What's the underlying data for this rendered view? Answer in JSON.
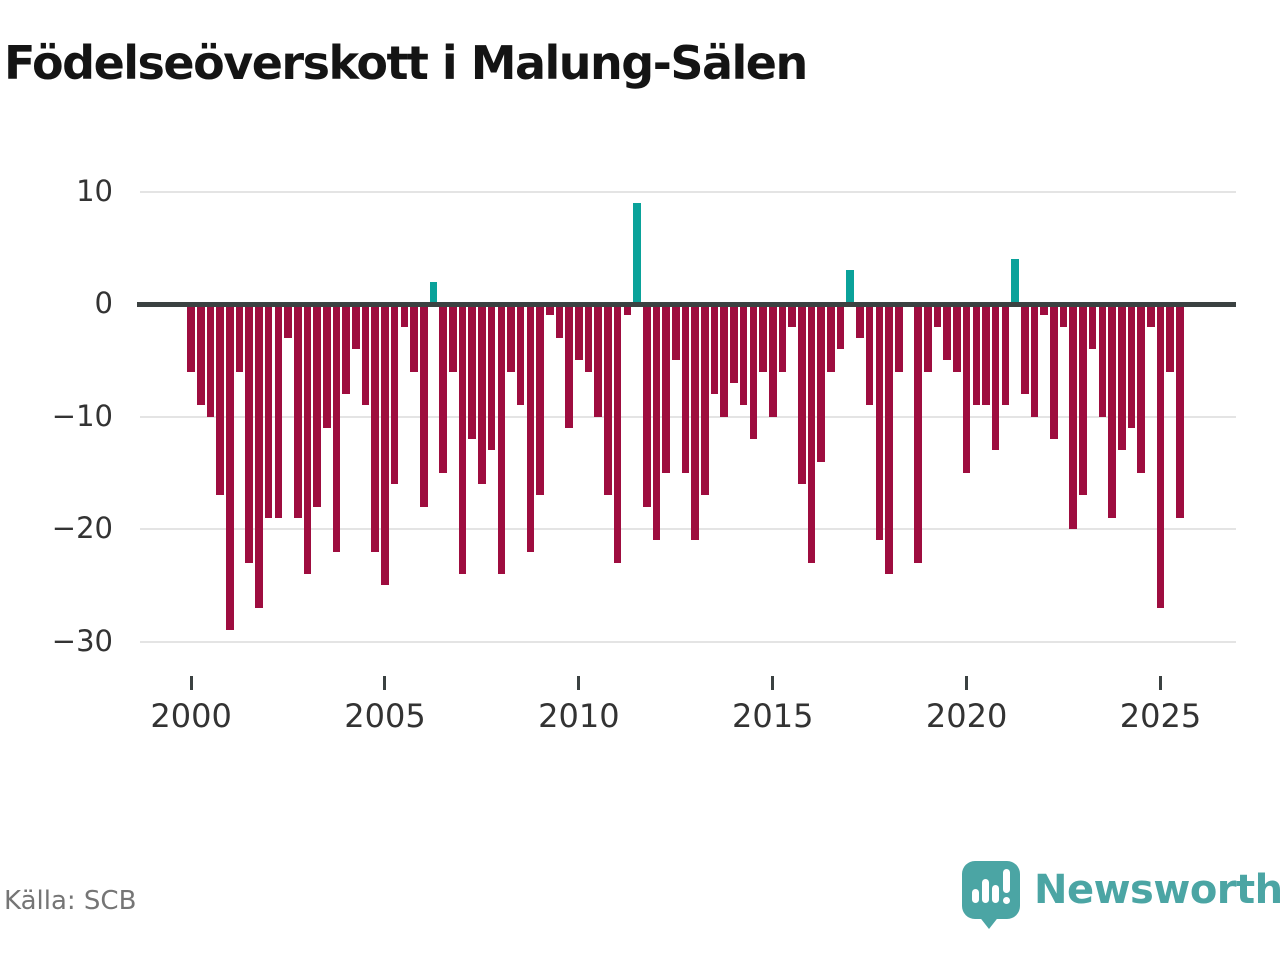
{
  "title": "Födelseöverskott i Malung-Sälen",
  "source": "Källa: SCB",
  "logo": {
    "text": "Newsworthy",
    "icon": "bar-chart-exclamation-speech-bubble"
  },
  "colors": {
    "negative_bar": "#9e0d3f",
    "positive_bar": "#0aa29a",
    "zero_line": "#3b4141",
    "gridline": "#e4e4e4",
    "axis_text": "#333333",
    "title_text": "#141414",
    "source_text": "#757575",
    "logo_teal": "#4ba5a4"
  },
  "chart_data": {
    "type": "bar",
    "title": "Födelseöverskott i Malung-Sälen",
    "xlabel": "",
    "ylabel": "",
    "ylim": [
      -30,
      10
    ],
    "yticks": [
      10,
      0,
      -10,
      -20,
      -30
    ],
    "ytick_labels": [
      "10",
      "0",
      "−10",
      "−20",
      "−30"
    ],
    "grid": "horizontal",
    "legend": "none",
    "period": "quarterly",
    "start": "2000 Q1",
    "end": "2025 Q3",
    "xticks": [
      {
        "label": "2000",
        "bar_index": 0
      },
      {
        "label": "2005",
        "bar_index": 20
      },
      {
        "label": "2010",
        "bar_index": 40
      },
      {
        "label": "2015",
        "bar_index": 60
      },
      {
        "label": "2020",
        "bar_index": 80
      },
      {
        "label": "2025",
        "bar_index": 100
      }
    ],
    "values": [
      -6,
      -9,
      -10,
      -17,
      -29,
      -6,
      -23,
      -27,
      -19,
      -19,
      -3,
      -19,
      -24,
      -18,
      -11,
      -22,
      -8,
      -4,
      -9,
      -22,
      -25,
      -16,
      -2,
      -6,
      -18,
      2,
      -15,
      -6,
      -24,
      -12,
      -16,
      -13,
      -24,
      -6,
      -9,
      -22,
      -17,
      -1,
      -3,
      -11,
      -5,
      -6,
      -10,
      -17,
      -23,
      -1,
      9,
      -18,
      -21,
      -15,
      -5,
      -15,
      -21,
      -17,
      -8,
      -10,
      -7,
      -9,
      -12,
      -6,
      -10,
      -6,
      -2,
      -16,
      -23,
      -14,
      -6,
      -4,
      3,
      -3,
      -9,
      -21,
      -24,
      -6,
      0,
      -23,
      -6,
      -2,
      -5,
      -6,
      -15,
      -9,
      -9,
      -13,
      -9,
      4,
      -8,
      -10,
      -1,
      -12,
      -2,
      -20,
      -17,
      -4,
      -10,
      -19,
      -13,
      -11,
      -15,
      -2,
      -27,
      -6,
      -19
    ],
    "color_rule": "positive values teal, negative values dark red"
  }
}
